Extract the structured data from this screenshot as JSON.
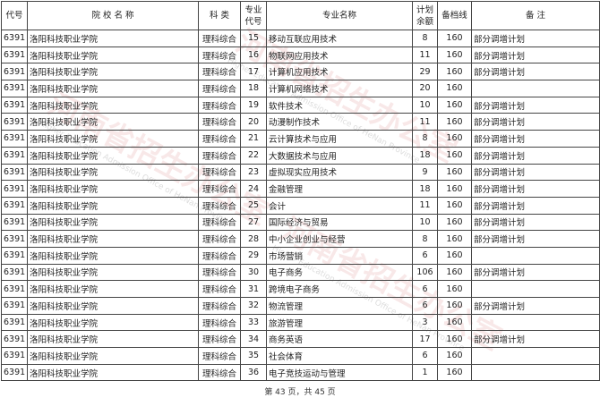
{
  "headers": [
    "代号",
    "院 校 名 称",
    "科 类",
    "专业\n代号",
    "专业名称",
    "计划\n余额",
    "备档线",
    "备 注"
  ],
  "rows": [
    [
      "6391",
      "洛阳科技职业学院",
      "理科综合",
      "15",
      "移动互联应用技术",
      "8",
      "160",
      "部分调增计划"
    ],
    [
      "6391",
      "洛阳科技职业学院",
      "理科综合",
      "16",
      "物联网应用技术",
      "11",
      "160",
      "部分调增计划"
    ],
    [
      "6391",
      "洛阳科技职业学院",
      "理科综合",
      "17",
      "计算机应用技术",
      "29",
      "160",
      "部分调增计划"
    ],
    [
      "6391",
      "洛阳科技职业学院",
      "理科综合",
      "18",
      "计算机网络技术",
      "20",
      "160",
      ""
    ],
    [
      "6391",
      "洛阳科技职业学院",
      "理科综合",
      "19",
      "软件技术",
      "10",
      "160",
      "部分调增计划"
    ],
    [
      "6391",
      "洛阳科技职业学院",
      "理科综合",
      "20",
      "动漫制作技术",
      "11",
      "160",
      "部分调增计划"
    ],
    [
      "6391",
      "洛阳科技职业学院",
      "理科综合",
      "21",
      "云计算技术与应用",
      "8",
      "160",
      "部分调增计划"
    ],
    [
      "6391",
      "洛阳科技职业学院",
      "理科综合",
      "22",
      "大数据技术与应用",
      "18",
      "160",
      "部分调增计划"
    ],
    [
      "6391",
      "洛阳科技职业学院",
      "理科综合",
      "23",
      "虚拟现实应用技术",
      "9",
      "160",
      "部分调增计划"
    ],
    [
      "6391",
      "洛阳科技职业学院",
      "理科综合",
      "24",
      "金融管理",
      "18",
      "160",
      "部分调增计划"
    ],
    [
      "6391",
      "洛阳科技职业学院",
      "理科综合",
      "25",
      "会计",
      "11",
      "160",
      "部分调增计划"
    ],
    [
      "6391",
      "洛阳科技职业学院",
      "理科综合",
      "27",
      "国际经济与贸易",
      "10",
      "160",
      "部分调增计划"
    ],
    [
      "6391",
      "洛阳科技职业学院",
      "理科综合",
      "28",
      "中小企业创业与经营",
      "8",
      "160",
      "部分调增计划"
    ],
    [
      "6391",
      "洛阳科技职业学院",
      "理科综合",
      "29",
      "市场营销",
      "6",
      "160",
      ""
    ],
    [
      "6391",
      "洛阳科技职业学院",
      "理科综合",
      "30",
      "电子商务",
      "106",
      "160",
      "部分调增计划"
    ],
    [
      "6391",
      "洛阳科技职业学院",
      "理科综合",
      "31",
      "跨境电子商务",
      "6",
      "160",
      ""
    ],
    [
      "6391",
      "洛阳科技职业学院",
      "理科综合",
      "32",
      "物流管理",
      "6",
      "160",
      "部分调增计划"
    ],
    [
      "6391",
      "洛阳科技职业学院",
      "理科综合",
      "33",
      "旅游管理",
      "3",
      "160",
      ""
    ],
    [
      "6391",
      "洛阳科技职业学院",
      "理科综合",
      "34",
      "商务英语",
      "17",
      "160",
      "部分调增计划"
    ],
    [
      "6391",
      "洛阳科技职业学院",
      "理科综合",
      "35",
      "社会体育",
      "6",
      "160",
      ""
    ],
    [
      "6391",
      "洛阳科技职业学院",
      "理科综合",
      "36",
      "电子竞技运动与管理",
      "1",
      "160",
      ""
    ]
  ],
  "footer": "第 43 页，共 45 页",
  "watermark": {
    "text": "河南省招生办公室",
    "subtext": "Higher Education Admission Office of HeNan Province",
    "color": "#c85050"
  }
}
